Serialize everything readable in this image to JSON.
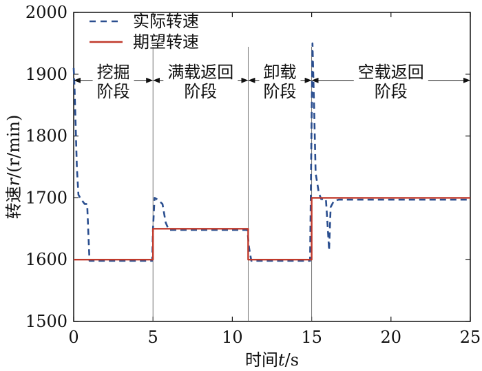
{
  "chart_data": {
    "type": "line",
    "xlabel_parts": [
      "时间",
      "t",
      "/s"
    ],
    "ylabel_parts": [
      "转速",
      "r",
      "/(r/min)"
    ],
    "xlim": [
      0,
      25
    ],
    "ylim": [
      1500,
      2000
    ],
    "xticks": [
      "0",
      "5",
      "10",
      "15",
      "20",
      "25"
    ],
    "yticks": [
      "1500",
      "1600",
      "1700",
      "1800",
      "1900",
      "2000"
    ],
    "xtick_values": [
      0,
      5,
      10,
      15,
      20,
      25
    ],
    "ytick_values": [
      1500,
      1600,
      1700,
      1800,
      1900,
      2000
    ],
    "grid": false,
    "legend_position": "top-left",
    "series": [
      {
        "name": "实际转速",
        "style": "dashed",
        "color": "#2a4e8f",
        "points": [
          [
            0,
            1910
          ],
          [
            0.05,
            1880
          ],
          [
            0.12,
            1820
          ],
          [
            0.2,
            1750
          ],
          [
            0.3,
            1705
          ],
          [
            0.45,
            1698
          ],
          [
            0.7,
            1690
          ],
          [
            0.85,
            1690
          ],
          [
            0.93,
            1640
          ],
          [
            1.0,
            1598
          ],
          [
            4.95,
            1598
          ],
          [
            5.0,
            1650
          ],
          [
            5.1,
            1700
          ],
          [
            5.35,
            1696
          ],
          [
            5.6,
            1690
          ],
          [
            5.8,
            1660
          ],
          [
            6.0,
            1648
          ],
          [
            10.95,
            1648
          ],
          [
            11.05,
            1620
          ],
          [
            11.2,
            1598
          ],
          [
            14.9,
            1598
          ],
          [
            14.97,
            1760
          ],
          [
            15.05,
            1950
          ],
          [
            15.15,
            1850
          ],
          [
            15.25,
            1740
          ],
          [
            15.45,
            1708
          ],
          [
            15.6,
            1698
          ],
          [
            15.9,
            1698
          ],
          [
            16.02,
            1650
          ],
          [
            16.1,
            1615
          ],
          [
            16.2,
            1685
          ],
          [
            16.4,
            1695
          ],
          [
            16.7,
            1697
          ],
          [
            25,
            1697
          ]
        ]
      },
      {
        "name": "期望转速",
        "style": "solid",
        "color": "#c0392b",
        "points": [
          [
            0,
            1600
          ],
          [
            5,
            1600
          ],
          [
            5,
            1650
          ],
          [
            11,
            1650
          ],
          [
            11,
            1600
          ],
          [
            15,
            1600
          ],
          [
            15,
            1700
          ],
          [
            25,
            1700
          ]
        ]
      }
    ],
    "phase_dividers": [
      0,
      5,
      11,
      15,
      25
    ],
    "phases": [
      {
        "lines": [
          "挖掘",
          "阶段"
        ],
        "x": 2.5
      },
      {
        "lines": [
          "满载返回",
          "阶段"
        ],
        "x": 8
      },
      {
        "lines": [
          "卸载",
          "阶段"
        ],
        "x": 13
      },
      {
        "lines": [
          "空载返回",
          "阶段"
        ],
        "x": 20
      }
    ],
    "phase_arrow_y": 1890
  }
}
